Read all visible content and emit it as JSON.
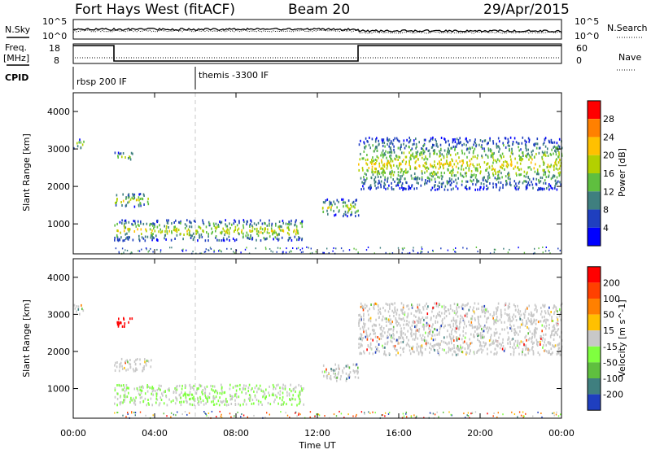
{
  "header": {
    "station": "Fort Hays West (fitACF)",
    "beam": "Beam 20",
    "date": "29/Apr/2015"
  },
  "summary_panels": {
    "nsky_label": "N.Sky",
    "nsearch_label": "N.Search",
    "noise_ticks": [
      "10^5",
      "10^0"
    ],
    "freq_label": "Freq.",
    "freq_unit": "[MHz]",
    "freq_ticks": [
      "18",
      "8"
    ],
    "nave_label": "Nave",
    "nave_ticks": [
      "60",
      "0"
    ],
    "cpid_label": "CPID",
    "cpid_entries": [
      {
        "text": "rbsp 200 IF",
        "start_hour": 0.0
      },
      {
        "text": "themis -3300 IF",
        "start_hour": 6.0
      }
    ]
  },
  "chart_data": [
    {
      "type": "heatmap",
      "name": "power",
      "ylabel": "Slant Range [km]",
      "yticks": [
        1000,
        2000,
        3000,
        4000
      ],
      "ylim": [
        200,
        4500
      ],
      "colorbar": {
        "label": "Power [dB]",
        "ticks": [
          "4",
          "8",
          "12",
          "16",
          "20",
          "24",
          "28"
        ],
        "colors": [
          "#0000ff",
          "#1f3fbf",
          "#3f7f7f",
          "#5fbf3f",
          "#b3d000",
          "#ffc000",
          "#ff8000",
          "#ff0000"
        ]
      },
      "echo_regions": [
        {
          "t_start": 0.0,
          "t_end": 0.5,
          "range_start": 3000,
          "range_end": 3250
        },
        {
          "t_start": 2.0,
          "t_end": 2.9,
          "range_start": 2700,
          "range_end": 2900
        },
        {
          "t_start": 2.0,
          "t_end": 3.8,
          "range_start": 1450,
          "range_end": 1800
        },
        {
          "t_start": 2.0,
          "t_end": 11.3,
          "range_start": 550,
          "range_end": 1100
        },
        {
          "t_start": 12.2,
          "t_end": 14.0,
          "range_start": 1200,
          "range_end": 1650
        },
        {
          "t_start": 14.0,
          "t_end": 24.0,
          "range_start": 1900,
          "range_end": 3300
        }
      ]
    },
    {
      "type": "heatmap",
      "name": "velocity",
      "ylabel": "Slant Range [km]",
      "yticks": [
        1000,
        2000,
        3000,
        4000
      ],
      "ylim": [
        200,
        4500
      ],
      "xlabel": "Time UT",
      "xticks": [
        "00:00",
        "04:00",
        "08:00",
        "12:00",
        "16:00",
        "20:00",
        "00:00"
      ],
      "colorbar": {
        "label": "Velocity [m s^-1]",
        "ticks": [
          "200",
          "100",
          "50",
          "15",
          "-15",
          "-50",
          "-100",
          "-200"
        ],
        "colors": [
          "#1f3fbf",
          "#3f7f7f",
          "#5fbf3f",
          "#7fff3f",
          "#c8c8c8",
          "#ffc000",
          "#ff8000",
          "#ff4000",
          "#ff0000"
        ]
      },
      "echo_regions": [
        {
          "t_start": 0.0,
          "t_end": 0.5,
          "range_start": 3000,
          "range_end": 3250
        },
        {
          "t_start": 2.0,
          "t_end": 2.9,
          "range_start": 2650,
          "range_end": 2900
        },
        {
          "t_start": 2.0,
          "t_end": 3.8,
          "range_start": 1450,
          "range_end": 1800
        },
        {
          "t_start": 2.0,
          "t_end": 11.3,
          "range_start": 550,
          "range_end": 1100
        },
        {
          "t_start": 12.2,
          "t_end": 14.0,
          "range_start": 1200,
          "range_end": 1650
        },
        {
          "t_start": 14.0,
          "t_end": 24.0,
          "range_start": 1900,
          "range_end": 3300
        }
      ]
    }
  ]
}
